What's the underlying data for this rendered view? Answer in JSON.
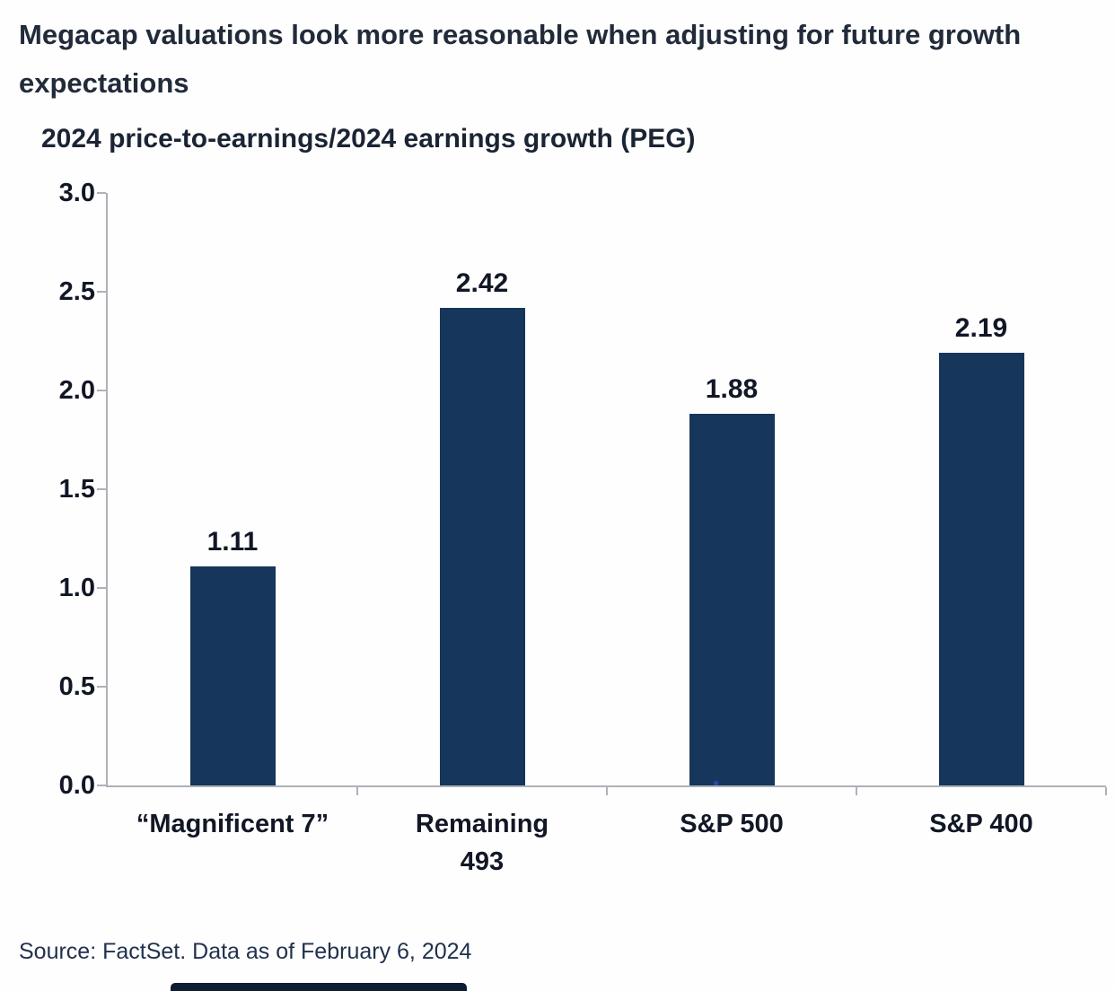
{
  "header": {
    "title": "Megacap valuations look more reasonable when adjusting for future growth expectations"
  },
  "chart_data": {
    "type": "bar",
    "title": "2024 price-to-earnings/2024 earnings growth (PEG)",
    "categories": [
      "“Magnificent 7”",
      "Remaining 493",
      "S&P 500",
      "S&P 400"
    ],
    "category_display": [
      "“Magnificent 7”",
      "Remaining\n493",
      "S&P 500",
      "S&P 400"
    ],
    "values": [
      1.11,
      2.42,
      1.88,
      2.19
    ],
    "value_labels": [
      "1.11",
      "2.42",
      "1.88",
      "2.19"
    ],
    "xlabel": "",
    "ylabel": "",
    "ylim": [
      0,
      3
    ],
    "yticks": [
      "3.0",
      "2.5",
      "2.0",
      "1.5",
      "1.0",
      "0.5",
      "0.0"
    ],
    "bar_color": "#16365c",
    "grid": false,
    "legend": "none"
  },
  "footer": {
    "source": "Source: FactSet. Data as of February 6, 2024"
  }
}
